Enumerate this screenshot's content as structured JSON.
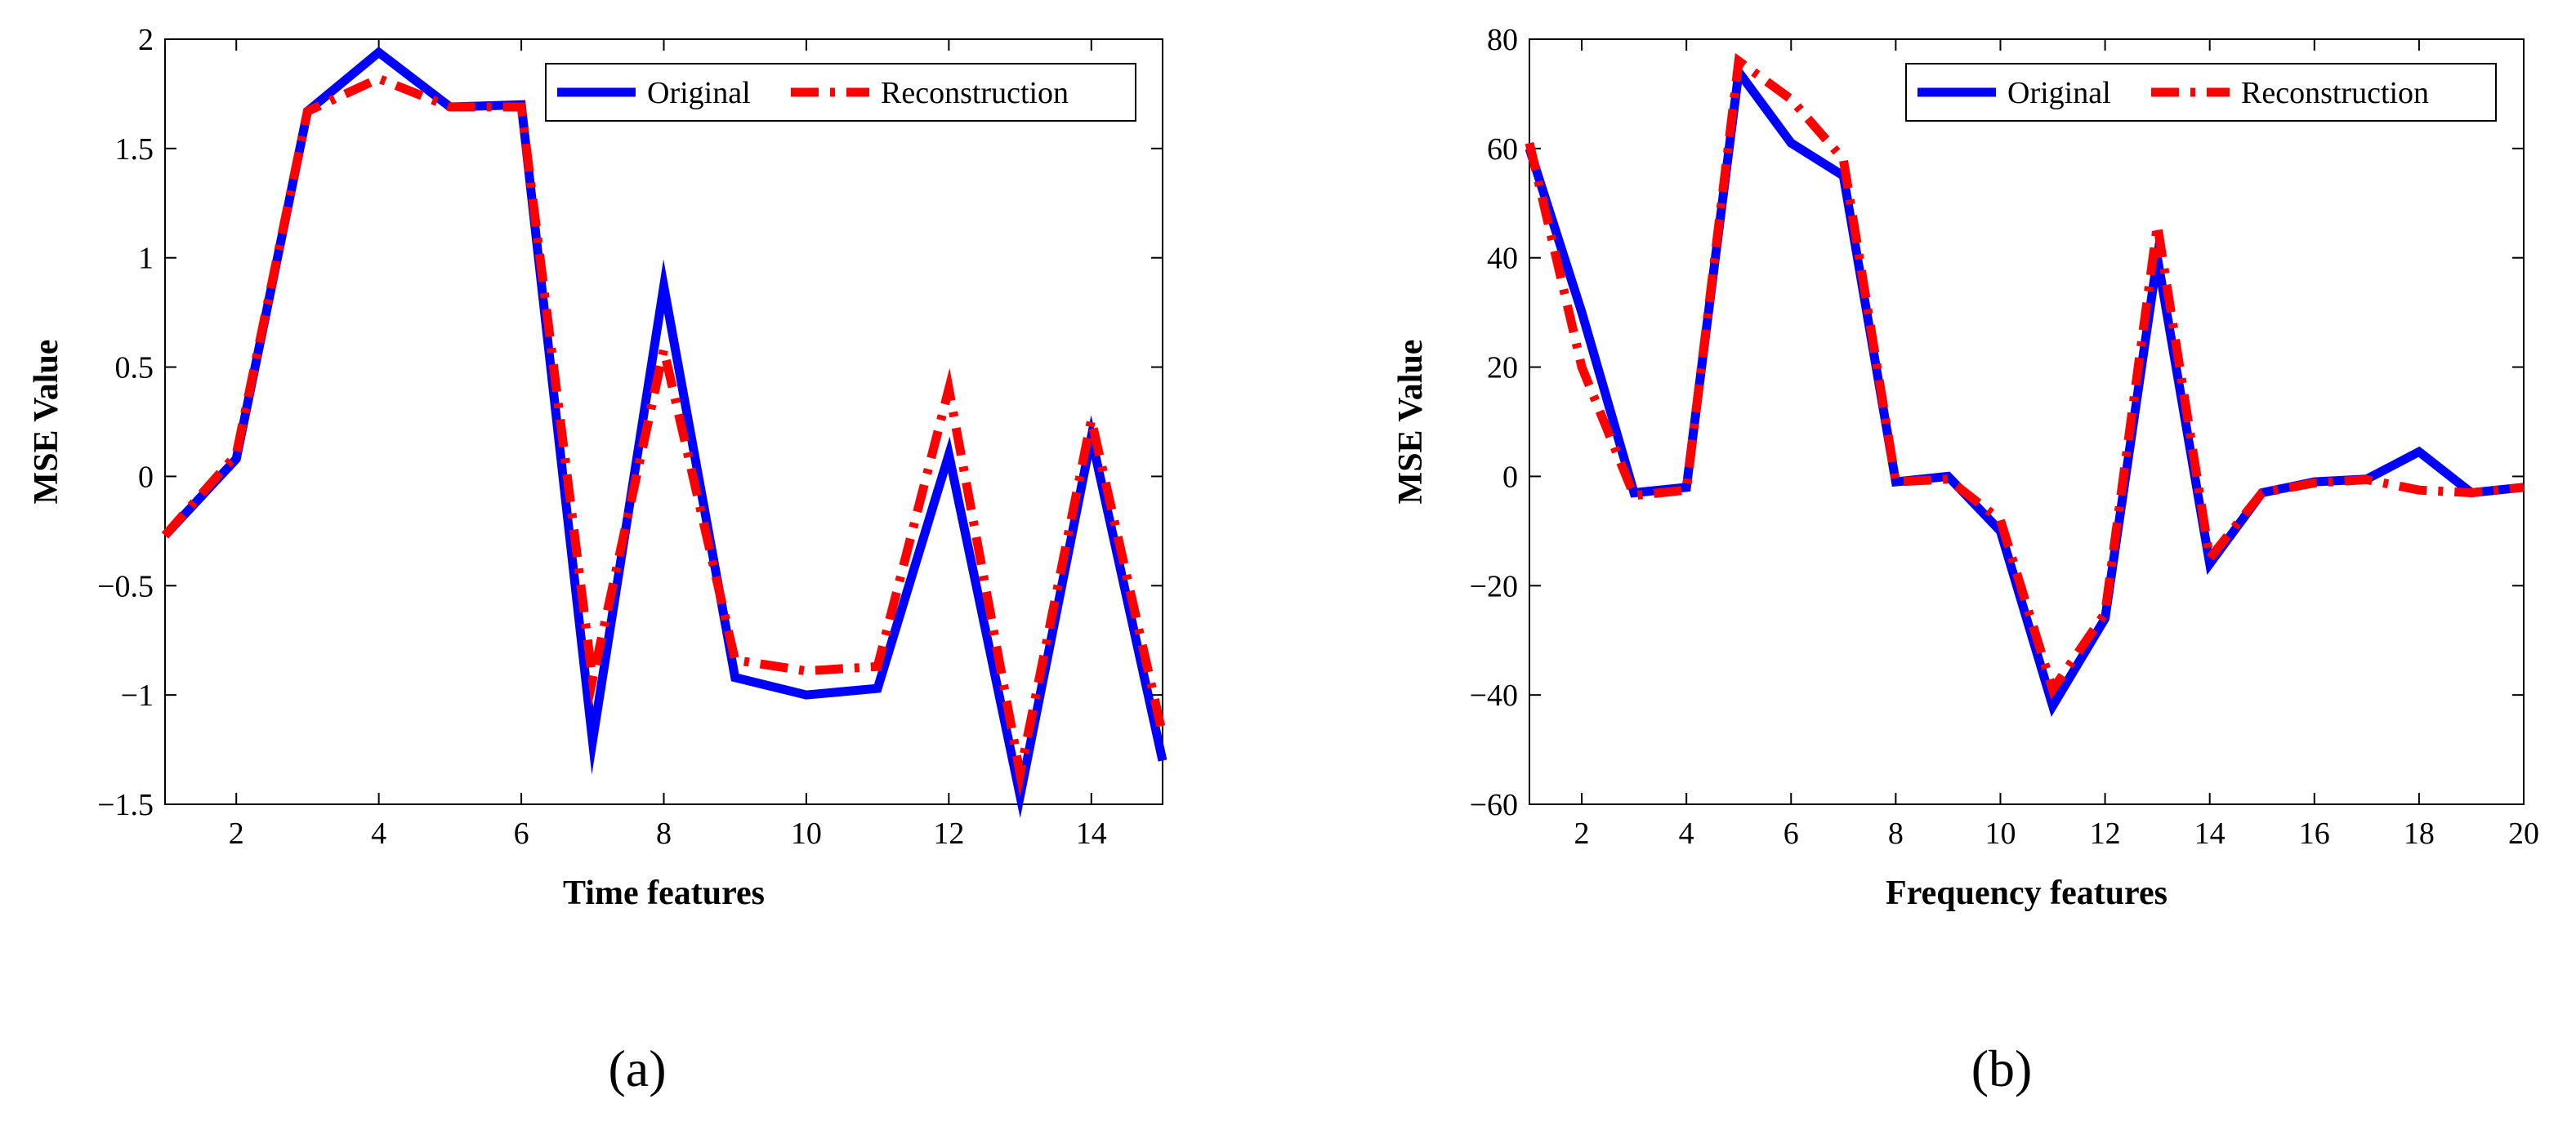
{
  "colors": {
    "original": "#0000ff",
    "reconstruction": "#ff0000",
    "axis": "#000000",
    "background": "#ffffff"
  },
  "chart_data": [
    {
      "type": "line",
      "panel_label": "(a)",
      "title": "",
      "xlabel": "Time features",
      "ylabel": "MSE Value",
      "xlim": [
        1,
        15
      ],
      "ylim": [
        -1.5,
        2
      ],
      "xticks": [
        2,
        4,
        6,
        8,
        10,
        12,
        14
      ],
      "xtick_labels": [
        "2",
        "4",
        "6",
        "8",
        "10",
        "12",
        "14"
      ],
      "yticks": [
        -1.5,
        -1,
        -0.5,
        0,
        0.5,
        1,
        1.5,
        2
      ],
      "ytick_labels": [
        "−1.5",
        "−1",
        "−0.5",
        "0",
        "0.5",
        "1",
        "1.5",
        "2"
      ],
      "grid": false,
      "legend_position": "top-right",
      "x": [
        1,
        2,
        3,
        4,
        5,
        6,
        7,
        8,
        9,
        10,
        11,
        12,
        13,
        14,
        15
      ],
      "series": [
        {
          "name": "Original",
          "style": "solid",
          "values": [
            -0.27,
            0.08,
            1.67,
            1.94,
            1.69,
            1.7,
            -1.21,
            0.87,
            -0.92,
            -1.0,
            -0.97,
            0.1,
            -1.46,
            0.18,
            -1.3
          ]
        },
        {
          "name": "Reconstruction",
          "style": "dash-dot",
          "values": [
            -0.27,
            0.1,
            1.67,
            1.82,
            1.69,
            1.69,
            -0.93,
            0.58,
            -0.84,
            -0.89,
            -0.87,
            0.4,
            -1.36,
            0.26,
            -1.18
          ]
        }
      ]
    },
    {
      "type": "line",
      "panel_label": "(b)",
      "title": "",
      "xlabel": "Frequency features",
      "ylabel": "MSE Value",
      "xlim": [
        1,
        20
      ],
      "ylim": [
        -60,
        80
      ],
      "xticks": [
        2,
        4,
        6,
        8,
        10,
        12,
        14,
        16,
        18,
        20
      ],
      "xtick_labels": [
        "2",
        "4",
        "6",
        "8",
        "10",
        "12",
        "14",
        "16",
        "18",
        "20"
      ],
      "yticks": [
        -60,
        -40,
        -20,
        0,
        20,
        40,
        60,
        80
      ],
      "ytick_labels": [
        "−60",
        "−40",
        "−20",
        "0",
        "20",
        "40",
        "60",
        "80"
      ],
      "grid": false,
      "legend_position": "top-right",
      "x": [
        1,
        2,
        3,
        4,
        5,
        6,
        7,
        8,
        9,
        10,
        11,
        12,
        13,
        14,
        15,
        16,
        17,
        18,
        19,
        20
      ],
      "series": [
        {
          "name": "Original",
          "style": "solid",
          "values": [
            60,
            30,
            -3,
            -2,
            74,
            61,
            55,
            -1,
            0,
            -10,
            -42,
            -26,
            40,
            -16,
            -3,
            -1,
            -0.5,
            4.5,
            -3,
            -2
          ]
        },
        {
          "name": "Reconstruction",
          "style": "dash-dot",
          "values": [
            61,
            20,
            -3.5,
            -2.5,
            76,
            69,
            58,
            -1,
            -0.5,
            -8,
            -39,
            -25,
            46,
            -15,
            -3,
            -1.2,
            -0.6,
            -2.5,
            -3,
            -2
          ]
        }
      ]
    }
  ]
}
